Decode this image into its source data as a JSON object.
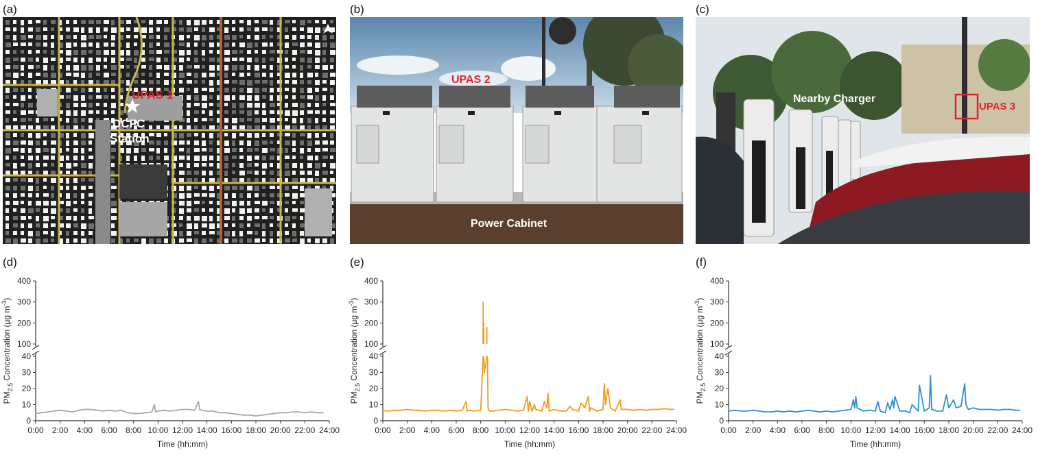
{
  "panels": {
    "a": {
      "letter": "(a)",
      "labels": {
        "upas": "UPAS 1",
        "station_line1": "DCFC",
        "station_line2": "Station"
      },
      "icons": [
        "north-arrow-icon",
        "star-icon"
      ]
    },
    "b": {
      "letter": "(b)",
      "labels": {
        "upas": "UPAS 2",
        "caption": "Power Cabinet"
      }
    },
    "c": {
      "letter": "(c)",
      "labels": {
        "caption": "Nearby Charger",
        "upas": "UPAS 3"
      }
    },
    "d": {
      "letter": "(d)"
    },
    "e": {
      "letter": "(e)"
    },
    "f": {
      "letter": "(f)"
    }
  },
  "colors": {
    "upas_red": "#d9262e",
    "gray_series": "#a8a8a8",
    "orange_series": "#f39a1e",
    "blue_series": "#2b8fd6"
  },
  "chart_data": [
    {
      "panel": "d",
      "type": "line",
      "color": "#a8a8a8",
      "ylabel": "PM2.5 Concentration (μg m-3)",
      "xlabel": "Time (hh:mm)",
      "x_ticks": [
        "0:00",
        "2:00",
        "4:00",
        "6:00",
        "8:00",
        "10:00",
        "12:00",
        "14:00",
        "16:00",
        "18:00",
        "20:00",
        "22:00",
        "24:00"
      ],
      "y_ticks_lower": [
        0,
        10,
        20,
        30,
        40
      ],
      "y_ticks_upper": [
        100,
        200,
        300,
        400
      ],
      "ylim_lower": [
        0,
        40
      ],
      "ylim_upper": [
        100,
        400
      ],
      "xlim": [
        0,
        24
      ],
      "broken_axis": true,
      "x": [
        0,
        0.5,
        1,
        1.5,
        2,
        2.5,
        3,
        3.5,
        4,
        4.5,
        5,
        5.5,
        6,
        6.5,
        7,
        7.5,
        8,
        8.5,
        9,
        9.5,
        9.7,
        9.8,
        10,
        10.5,
        11,
        11.5,
        12,
        12.5,
        13,
        13.3,
        13.4,
        13.6,
        14,
        14.5,
        15,
        15.5,
        16,
        16.5,
        17,
        17.5,
        18,
        18.5,
        19,
        19.5,
        20,
        20.5,
        21,
        21.5,
        22,
        22.5,
        23,
        23.5
      ],
      "y": [
        4.5,
        5,
        5.5,
        6,
        6.5,
        6,
        5.5,
        6.5,
        7,
        7,
        6.5,
        6,
        6.5,
        6,
        6.5,
        5,
        4.5,
        4.5,
        5,
        5.5,
        10,
        5.5,
        6,
        6.5,
        6,
        6.5,
        7,
        7,
        6.5,
        12,
        7,
        6.5,
        6,
        6,
        5,
        5,
        4.5,
        4,
        3.5,
        3.5,
        3,
        3.5,
        4,
        4.5,
        5,
        5,
        5.5,
        5.5,
        5,
        5.5,
        5,
        5
      ]
    },
    {
      "panel": "e",
      "type": "line",
      "color": "#f39a1e",
      "ylabel": "PM2.5 Concentration (μg m-3)",
      "xlabel": "Time (hh:mm)",
      "x_ticks": [
        "0:00",
        "2:00",
        "4:00",
        "6:00",
        "8:00",
        "10:00",
        "12:00",
        "14:00",
        "16:00",
        "18:00",
        "20:00",
        "22:00",
        "24:00"
      ],
      "y_ticks_lower": [
        0,
        10,
        20,
        30,
        40
      ],
      "y_ticks_upper": [
        100,
        200,
        300,
        400
      ],
      "ylim_lower": [
        0,
        40
      ],
      "ylim_upper": [
        100,
        400
      ],
      "xlim": [
        0,
        24
      ],
      "broken_axis": true,
      "x": [
        0,
        0.5,
        1,
        1.5,
        2,
        2.5,
        3,
        3.5,
        4,
        4.5,
        5,
        5.5,
        6,
        6.5,
        6.8,
        6.9,
        7,
        7.5,
        8,
        8.2,
        8.25,
        8.3,
        8.4,
        8.5,
        8.55,
        8.6,
        8.7,
        9,
        9.5,
        10,
        10.5,
        11,
        11.5,
        11.8,
        11.9,
        12,
        12.2,
        12.4,
        12.5,
        13,
        13.2,
        13.4,
        13.5,
        13.6,
        14,
        14.5,
        15,
        15.3,
        15.5,
        16,
        16.2,
        16.5,
        16.8,
        16.9,
        17,
        17.5,
        18,
        18.1,
        18.2,
        18.4,
        18.6,
        19,
        19.4,
        19.5,
        20,
        20.5,
        21,
        21.5,
        22,
        22.5,
        23,
        23.5,
        23.8
      ],
      "y": [
        6.5,
        6,
        6.5,
        6.5,
        7,
        6.5,
        6.5,
        6,
        6.5,
        6.5,
        6,
        6.5,
        6,
        6.5,
        12,
        6,
        6.5,
        6,
        6.5,
        300,
        200,
        30,
        35,
        180,
        40,
        8,
        6,
        6,
        6.5,
        7,
        6.5,
        6,
        6.5,
        15,
        6,
        12,
        6,
        10,
        7,
        6,
        12,
        8,
        17,
        6,
        7,
        6,
        6,
        9,
        7,
        6,
        11,
        8,
        15,
        6,
        8,
        6,
        7,
        23,
        10,
        20,
        8,
        6,
        13,
        7,
        7,
        6.5,
        7,
        6.5,
        7,
        7,
        7.5,
        7,
        7
      ]
    },
    {
      "panel": "f",
      "type": "line",
      "color": "#2b8fd6",
      "ylabel": "PM2.5 Concentration (μg m-3)",
      "xlabel": "Time (hh:mm)",
      "x_ticks": [
        "0:00",
        "2:00",
        "4:00",
        "6:00",
        "8:00",
        "10:00",
        "12:00",
        "14:00",
        "16:00",
        "18:00",
        "20:00",
        "22:00",
        "24:00"
      ],
      "y_ticks_lower": [
        0,
        10,
        20,
        30,
        40
      ],
      "y_ticks_upper": [
        100,
        200,
        300,
        400
      ],
      "ylim_lower": [
        0,
        40
      ],
      "ylim_upper": [
        100,
        400
      ],
      "xlim": [
        0,
        24
      ],
      "broken_axis": true,
      "x": [
        0,
        0.5,
        1,
        1.5,
        2,
        2.5,
        3,
        3.5,
        4,
        4.5,
        5,
        5.5,
        6,
        6.5,
        7,
        7.5,
        8,
        8.5,
        9,
        9.5,
        10,
        10.2,
        10.3,
        10.4,
        10.5,
        11,
        11.5,
        12,
        12.2,
        12.4,
        12.8,
        13,
        13.2,
        13.4,
        13.5,
        13.6,
        14,
        14.5,
        14.8,
        15,
        15.5,
        15.6,
        16,
        16.4,
        16.5,
        16.6,
        17,
        17.5,
        17.8,
        18,
        18.4,
        18.6,
        19,
        19.3,
        19.4,
        19.6,
        20,
        20.5,
        21,
        21.5,
        22,
        22.5,
        23,
        23.5,
        23.8
      ],
      "y": [
        6,
        6.5,
        6,
        6,
        6.5,
        6,
        5.5,
        5.5,
        6,
        5.5,
        6,
        5.5,
        6,
        6.5,
        6,
        5.5,
        6,
        5.5,
        6,
        6.5,
        7,
        13,
        8,
        15,
        8,
        6,
        6.5,
        6,
        12,
        6,
        5,
        11,
        7,
        13,
        8,
        15,
        6,
        6,
        5,
        10,
        6,
        22,
        6,
        8,
        28,
        7,
        6,
        6,
        16,
        8,
        13,
        8,
        9,
        23,
        10,
        7,
        8,
        7,
        7,
        7,
        6.5,
        7,
        7,
        6.5,
        6.5
      ]
    }
  ]
}
